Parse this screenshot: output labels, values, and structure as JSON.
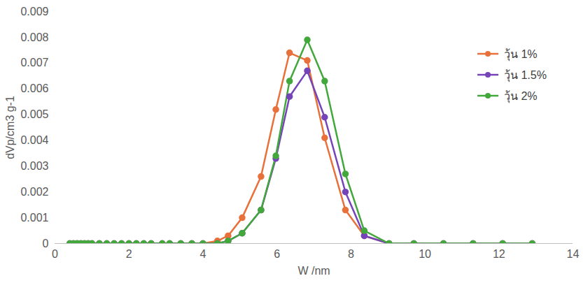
{
  "chart_data": {
    "type": "line",
    "x_label": "W /nm",
    "y_label": "dVp/cm3 g-1",
    "x": [
      0.4,
      0.5,
      0.6,
      0.7,
      0.8,
      0.9,
      1.0,
      1.2,
      1.4,
      1.6,
      1.8,
      2.0,
      2.2,
      2.4,
      2.6,
      2.9,
      3.1,
      3.4,
      3.7,
      4.0,
      4.39,
      4.68,
      5.06,
      5.57,
      5.97,
      6.34,
      6.82,
      7.29,
      7.85,
      8.36,
      9.03,
      9.7,
      10.5,
      11.3,
      12.1,
      12.9
    ],
    "series": [
      {
        "name": "วุ้น 1%",
        "color": "#e8703a",
        "marker": "circle",
        "values": [
          0,
          0,
          0,
          0,
          0,
          0,
          0,
          0,
          0,
          0,
          0,
          0,
          0,
          0,
          0,
          0,
          0,
          0,
          0,
          0,
          0.0001,
          0.0003,
          0.001,
          0.0026,
          0.0052,
          0.0074,
          0.0071,
          0.0041,
          0.0013,
          0.0003,
          0,
          0,
          0,
          0,
          0,
          0
        ]
      },
      {
        "name": "วุ้น 1.5%",
        "color": "#7444b8",
        "marker": "circle",
        "values": [
          0,
          0,
          0,
          0,
          0,
          0,
          0,
          0,
          0,
          0,
          0,
          0,
          0,
          0,
          0,
          0,
          0,
          0,
          0,
          0,
          0,
          0.0001,
          0.0004,
          0.0013,
          0.0033,
          0.0057,
          0.0067,
          0.0049,
          0.002,
          0.0003,
          0,
          0,
          0,
          0,
          0,
          0
        ]
      },
      {
        "name": "วุ้น 2%",
        "color": "#43a83c",
        "marker": "circle",
        "values": [
          0,
          0,
          0,
          0,
          0,
          0,
          0,
          0,
          0,
          0,
          0,
          0,
          0,
          0,
          0,
          0,
          0,
          0,
          0,
          0,
          0,
          0.0001,
          0.0004,
          0.0013,
          0.0034,
          0.0063,
          0.0079,
          0.0063,
          0.0027,
          0.0005,
          0,
          0,
          0,
          0,
          0,
          0
        ]
      }
    ],
    "xlim": [
      0,
      14
    ],
    "xticks": [
      0,
      2,
      4,
      6,
      8,
      10,
      12,
      14
    ],
    "ylim": [
      0,
      0.009
    ],
    "yticks": [
      0,
      0.001,
      0.002,
      0.003,
      0.004,
      0.005,
      0.006,
      0.007,
      0.008,
      0.009
    ],
    "grid": false,
    "legend": "upper right"
  }
}
